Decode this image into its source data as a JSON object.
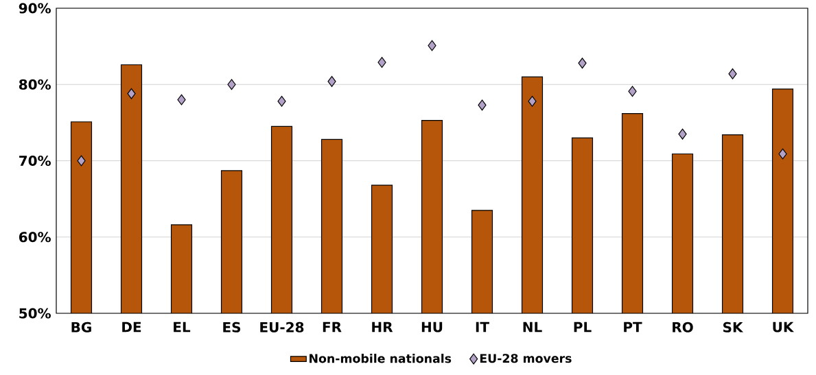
{
  "chart_data": {
    "type": "bar",
    "categories": [
      "BG",
      "DE",
      "EL",
      "ES",
      "EU-28",
      "FR",
      "HR",
      "HU",
      "IT",
      "NL",
      "PL",
      "PT",
      "RO",
      "SK",
      "UK"
    ],
    "series": [
      {
        "name": "Non-mobile nationals",
        "color": "#b5560b",
        "values": [
          75.1,
          82.6,
          61.6,
          68.7,
          74.5,
          72.8,
          66.8,
          75.3,
          63.5,
          81.0,
          73.0,
          76.2,
          70.9,
          73.4,
          79.4
        ]
      },
      {
        "name": "EU-28 movers",
        "type": "scatter",
        "marker": "diamond",
        "color": "#b3a2c7",
        "values": [
          70.0,
          78.8,
          78.0,
          80.0,
          77.8,
          80.4,
          82.9,
          85.1,
          77.3,
          77.8,
          82.8,
          79.1,
          73.5,
          81.4,
          70.9
        ]
      }
    ],
    "ylim": [
      50,
      90
    ],
    "yticks": [
      {
        "value": 50,
        "label": "50%"
      },
      {
        "value": 60,
        "label": "60%"
      },
      {
        "value": 70,
        "label": "70%"
      },
      {
        "value": 80,
        "label": "80%"
      },
      {
        "value": 90,
        "label": "90%"
      }
    ],
    "grid": "y",
    "legend": "bottom"
  }
}
